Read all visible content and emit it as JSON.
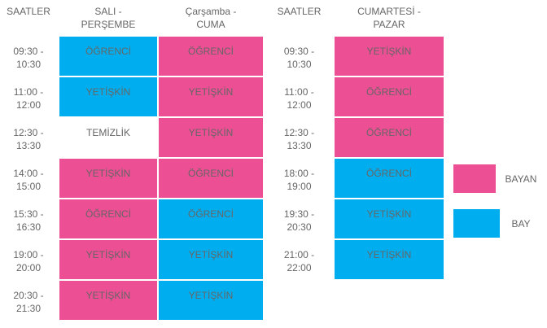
{
  "left": {
    "headers": [
      "SAATLER",
      "SALI - PERŞEMBE",
      "Çarşamba - CUMA"
    ],
    "rows": [
      {
        "time": "09:30 - 10:30",
        "cells": [
          {
            "text": "ÖĞRENCİ",
            "color": "#00aeef"
          },
          {
            "text": "ÖĞRENCİ",
            "color": "#ec4f93"
          }
        ]
      },
      {
        "time": "11:00 - 12:00",
        "cells": [
          {
            "text": "YETİŞKİN",
            "color": "#00aeef"
          },
          {
            "text": "YETİŞKİN",
            "color": "#ec4f93"
          }
        ]
      },
      {
        "time": "12:30 - 13:30",
        "cells": [
          {
            "text": "TEMİZLİK"
          },
          {
            "text": "YETİŞKİN",
            "color": "#ec4f93"
          }
        ]
      },
      {
        "time": "14:00 - 15:00",
        "cells": [
          {
            "text": "YETİŞKİN",
            "color": "#ec4f93"
          },
          {
            "text": "ÖĞRENCİ",
            "color": "#ec4f93"
          }
        ]
      },
      {
        "time": "15:30 - 16:30",
        "cells": [
          {
            "text": "ÖĞRENCİ",
            "color": "#ec4f93"
          },
          {
            "text": "ÖĞRENCİ",
            "color": "#00aeef"
          }
        ]
      },
      {
        "time": "19:00 - 20:00",
        "cells": [
          {
            "text": "YETİŞKİN",
            "color": "#ec4f93"
          },
          {
            "text": "YETİŞKİN",
            "color": "#00aeef"
          }
        ]
      },
      {
        "time": "20:30 - 21:30",
        "cells": [
          {
            "text": "YETİŞKİN",
            "color": "#ec4f93"
          },
          {
            "text": "YETİŞKİN",
            "color": "#00aeef"
          }
        ]
      }
    ]
  },
  "right": {
    "headers": [
      "SAATLER",
      "CUMARTESİ - PAZAR"
    ],
    "rows": [
      {
        "time": "09:30 - 10:30",
        "cells": [
          {
            "text": "YETİŞKİN",
            "color": "#ec4f93"
          }
        ]
      },
      {
        "time": "11:00 - 12:00",
        "cells": [
          {
            "text": "ÖĞRENCİ",
            "color": "#ec4f93"
          }
        ]
      },
      {
        "time": "12:30 - 13:30",
        "cells": [
          {
            "text": "ÖĞRENCİ",
            "color": "#ec4f93"
          }
        ]
      },
      {
        "time": "18:00 - 19:00",
        "cells": [
          {
            "text": "ÖĞRENCİ",
            "color": "#00aeef"
          }
        ]
      },
      {
        "time": "19:30 - 20:30",
        "cells": [
          {
            "text": "YETİŞKİN",
            "color": "#00aeef"
          }
        ]
      },
      {
        "time": "21:00 - 22:00",
        "cells": [
          {
            "text": "YETİŞKİN",
            "color": "#00aeef"
          }
        ]
      }
    ]
  },
  "legend": [
    {
      "label": "BAYAN",
      "color": "#ec4f93"
    },
    {
      "label": "BAY",
      "color": "#00aeef"
    }
  ]
}
